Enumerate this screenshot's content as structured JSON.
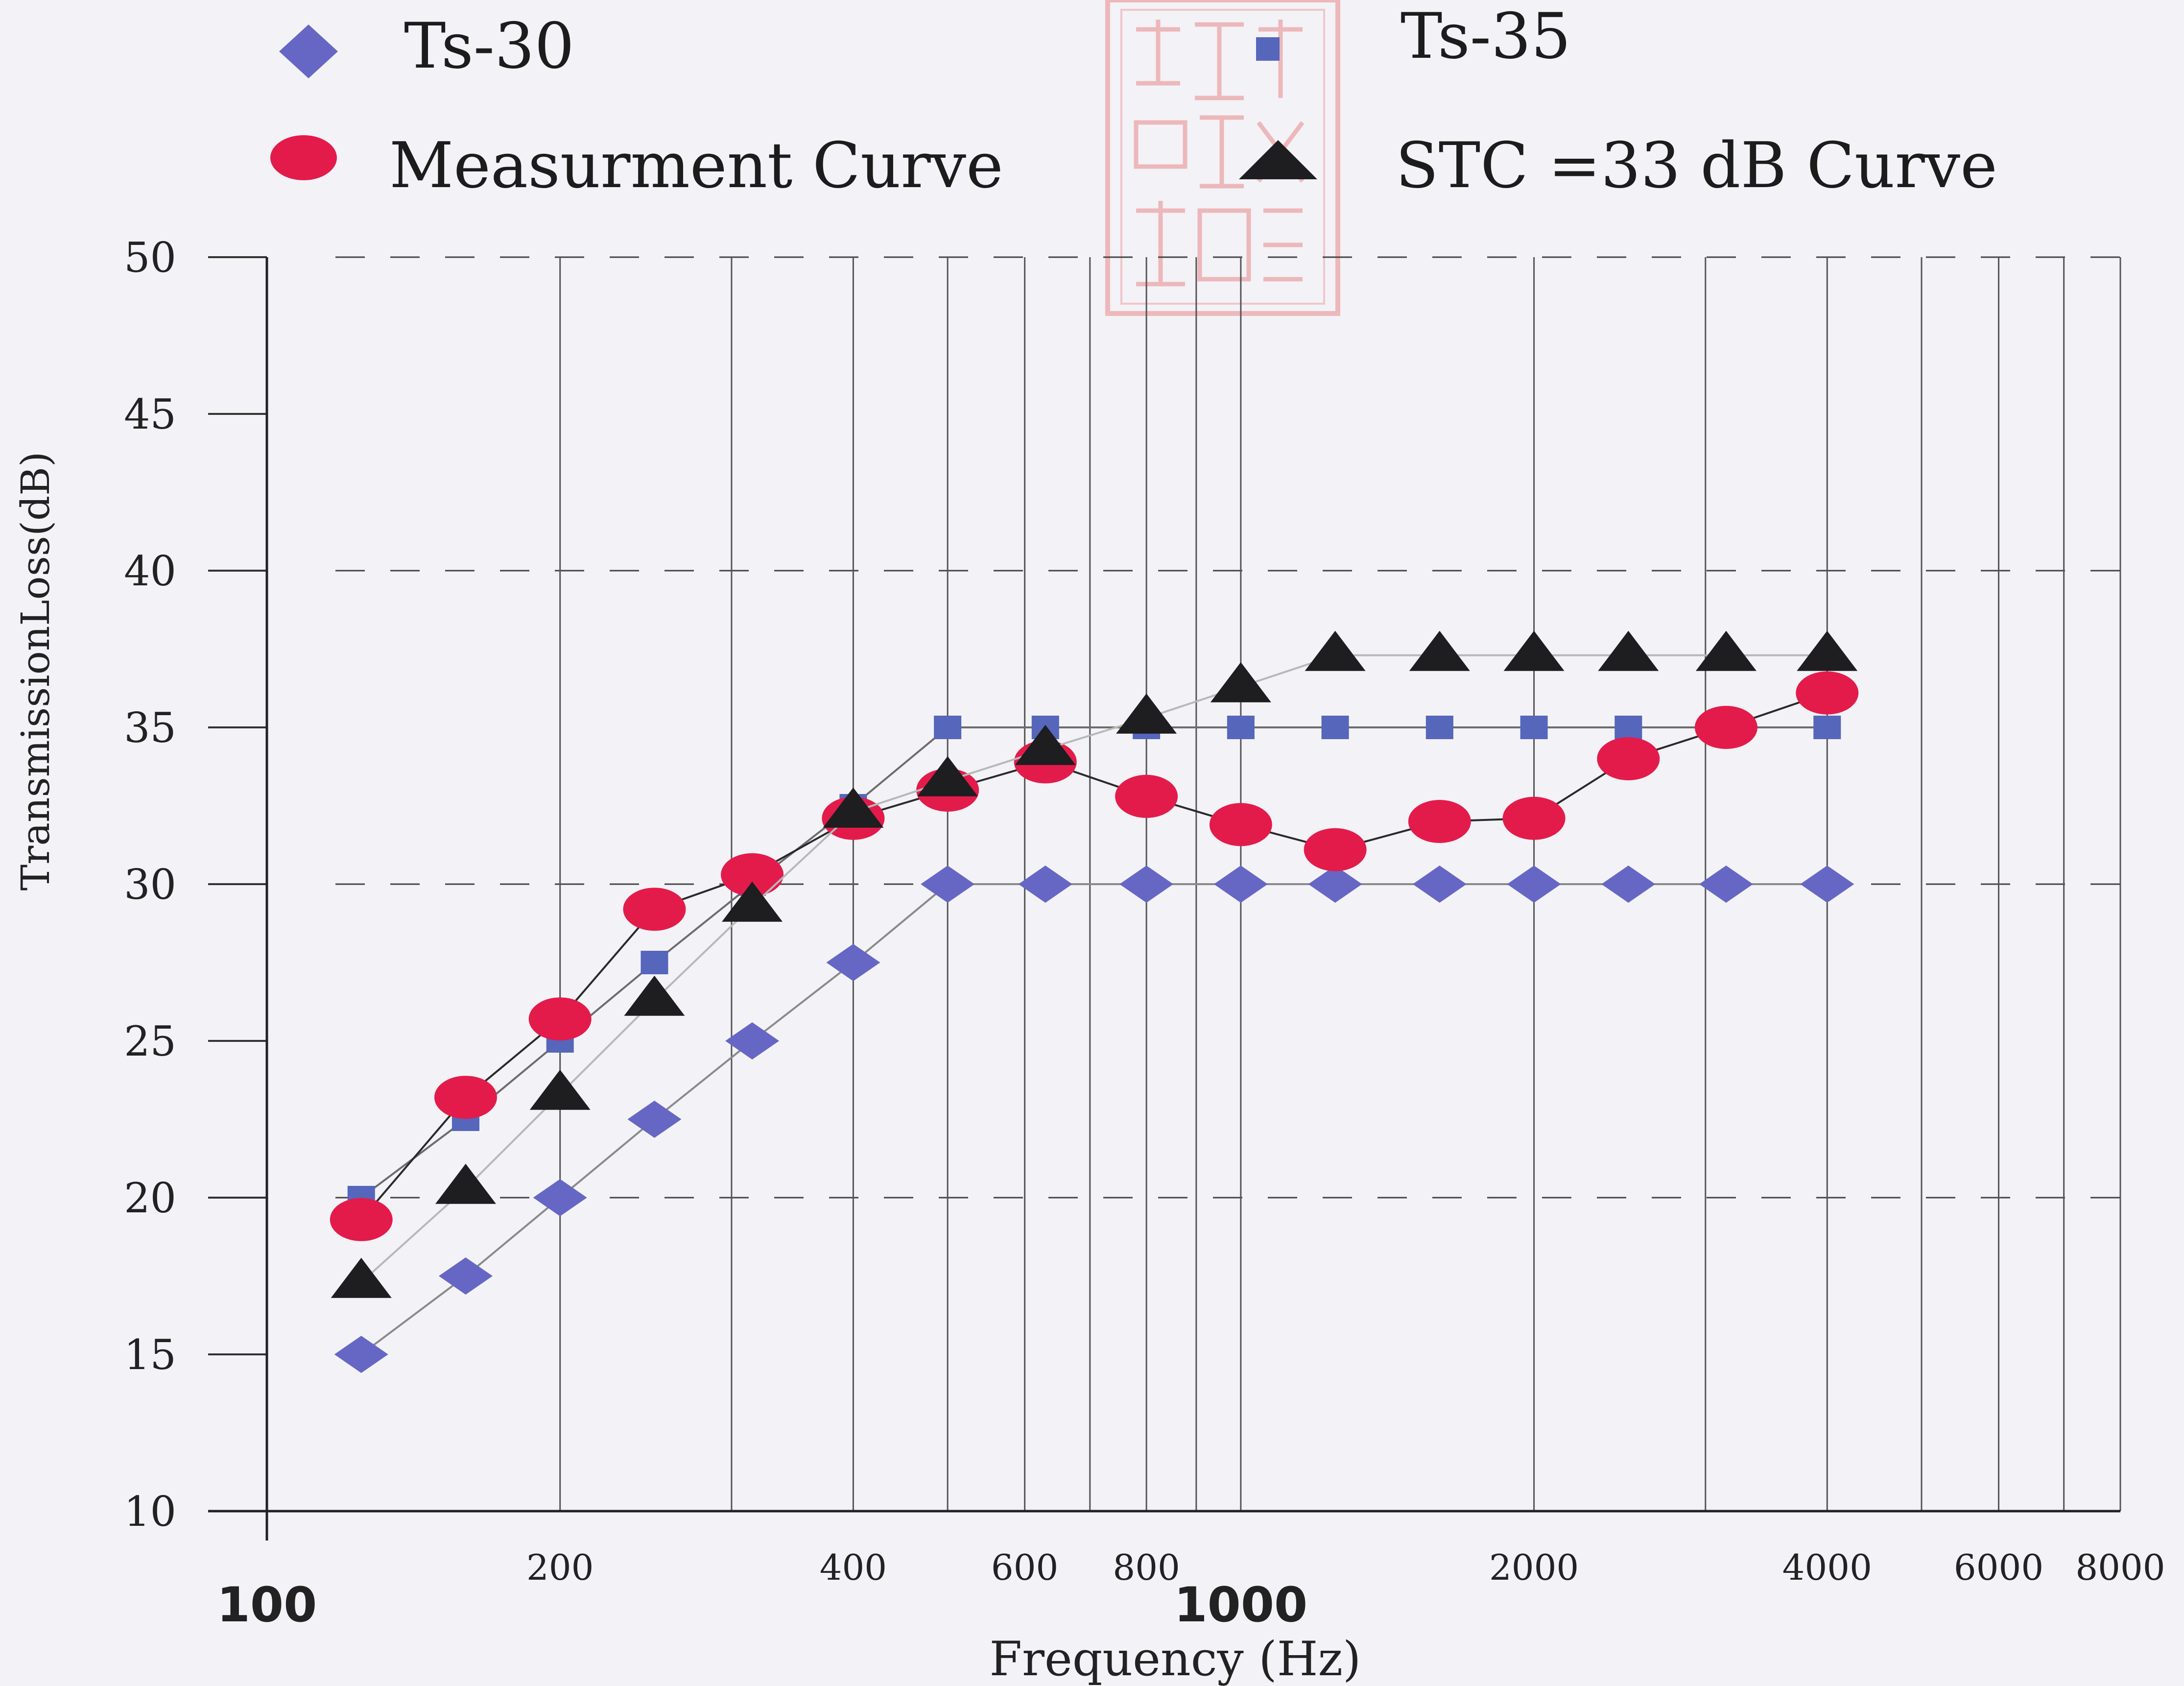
{
  "chart_data": {
    "type": "line",
    "title": "",
    "xlabel": "Frequency (Hz)",
    "ylabel": "TransmissionLoss(dB)",
    "x_scale": "log",
    "xlim": [
      100,
      8000
    ],
    "ylim": [
      10,
      50
    ],
    "y_ticks": [
      "50",
      "45",
      "40",
      "35",
      "30",
      "25",
      "20",
      "15",
      "10"
    ],
    "x_ticks_minor": [
      "200",
      "400",
      "600",
      "800",
      "2000",
      "4000",
      "6000",
      "8000"
    ],
    "x_ticks_major": [
      "100",
      "1000"
    ],
    "legend_position": "top",
    "grid": true,
    "colors": {
      "ts30": "#6667c4",
      "ts35": "#5566bb",
      "measurement": "#e31b4b",
      "stc": "#1e1d1f",
      "background": "#f3f2f6",
      "seal": "#e88a8c"
    },
    "series": [
      {
        "name": "Ts-30",
        "marker": "diamond",
        "x": [
          125,
          160,
          200,
          250,
          315,
          400,
          500,
          630,
          800,
          1000,
          1250,
          1600,
          2000,
          2500,
          3150,
          4000
        ],
        "y": [
          15,
          17.5,
          20,
          22.5,
          25,
          27.5,
          30,
          30,
          30,
          30,
          30,
          30,
          30,
          30,
          30,
          30
        ]
      },
      {
        "name": "Ts-35",
        "marker": "square",
        "x": [
          125,
          160,
          200,
          250,
          315,
          400,
          500,
          630,
          800,
          1000,
          1250,
          1600,
          2000,
          2500,
          3150,
          4000
        ],
        "y": [
          20,
          22.5,
          25,
          27.5,
          30,
          32.5,
          35,
          35,
          35,
          35,
          35,
          35,
          35,
          35,
          35,
          35
        ]
      },
      {
        "name": "Measurment Curve",
        "marker": "circle",
        "x": [
          125,
          160,
          200,
          250,
          315,
          400,
          500,
          630,
          800,
          1000,
          1250,
          1600,
          2000,
          2500,
          3150,
          4000
        ],
        "y": [
          19.3,
          23.2,
          25.7,
          29.2,
          30.3,
          32.1,
          33,
          33.9,
          32.8,
          31.9,
          31.1,
          32,
          32.1,
          34,
          35,
          36.1
        ]
      },
      {
        "name": "STC =33 dB Curve",
        "marker": "triangle",
        "x": [
          125,
          160,
          200,
          250,
          315,
          400,
          500,
          630,
          800,
          1000,
          1250,
          1600,
          2000,
          2500,
          3150,
          4000
        ],
        "y": [
          17.3,
          20.3,
          23.3,
          26.3,
          29.3,
          32.3,
          33.3,
          34.3,
          35.3,
          36.3,
          37.3,
          37.3,
          37.3,
          37.3,
          37.3,
          37.3
        ]
      }
    ]
  }
}
